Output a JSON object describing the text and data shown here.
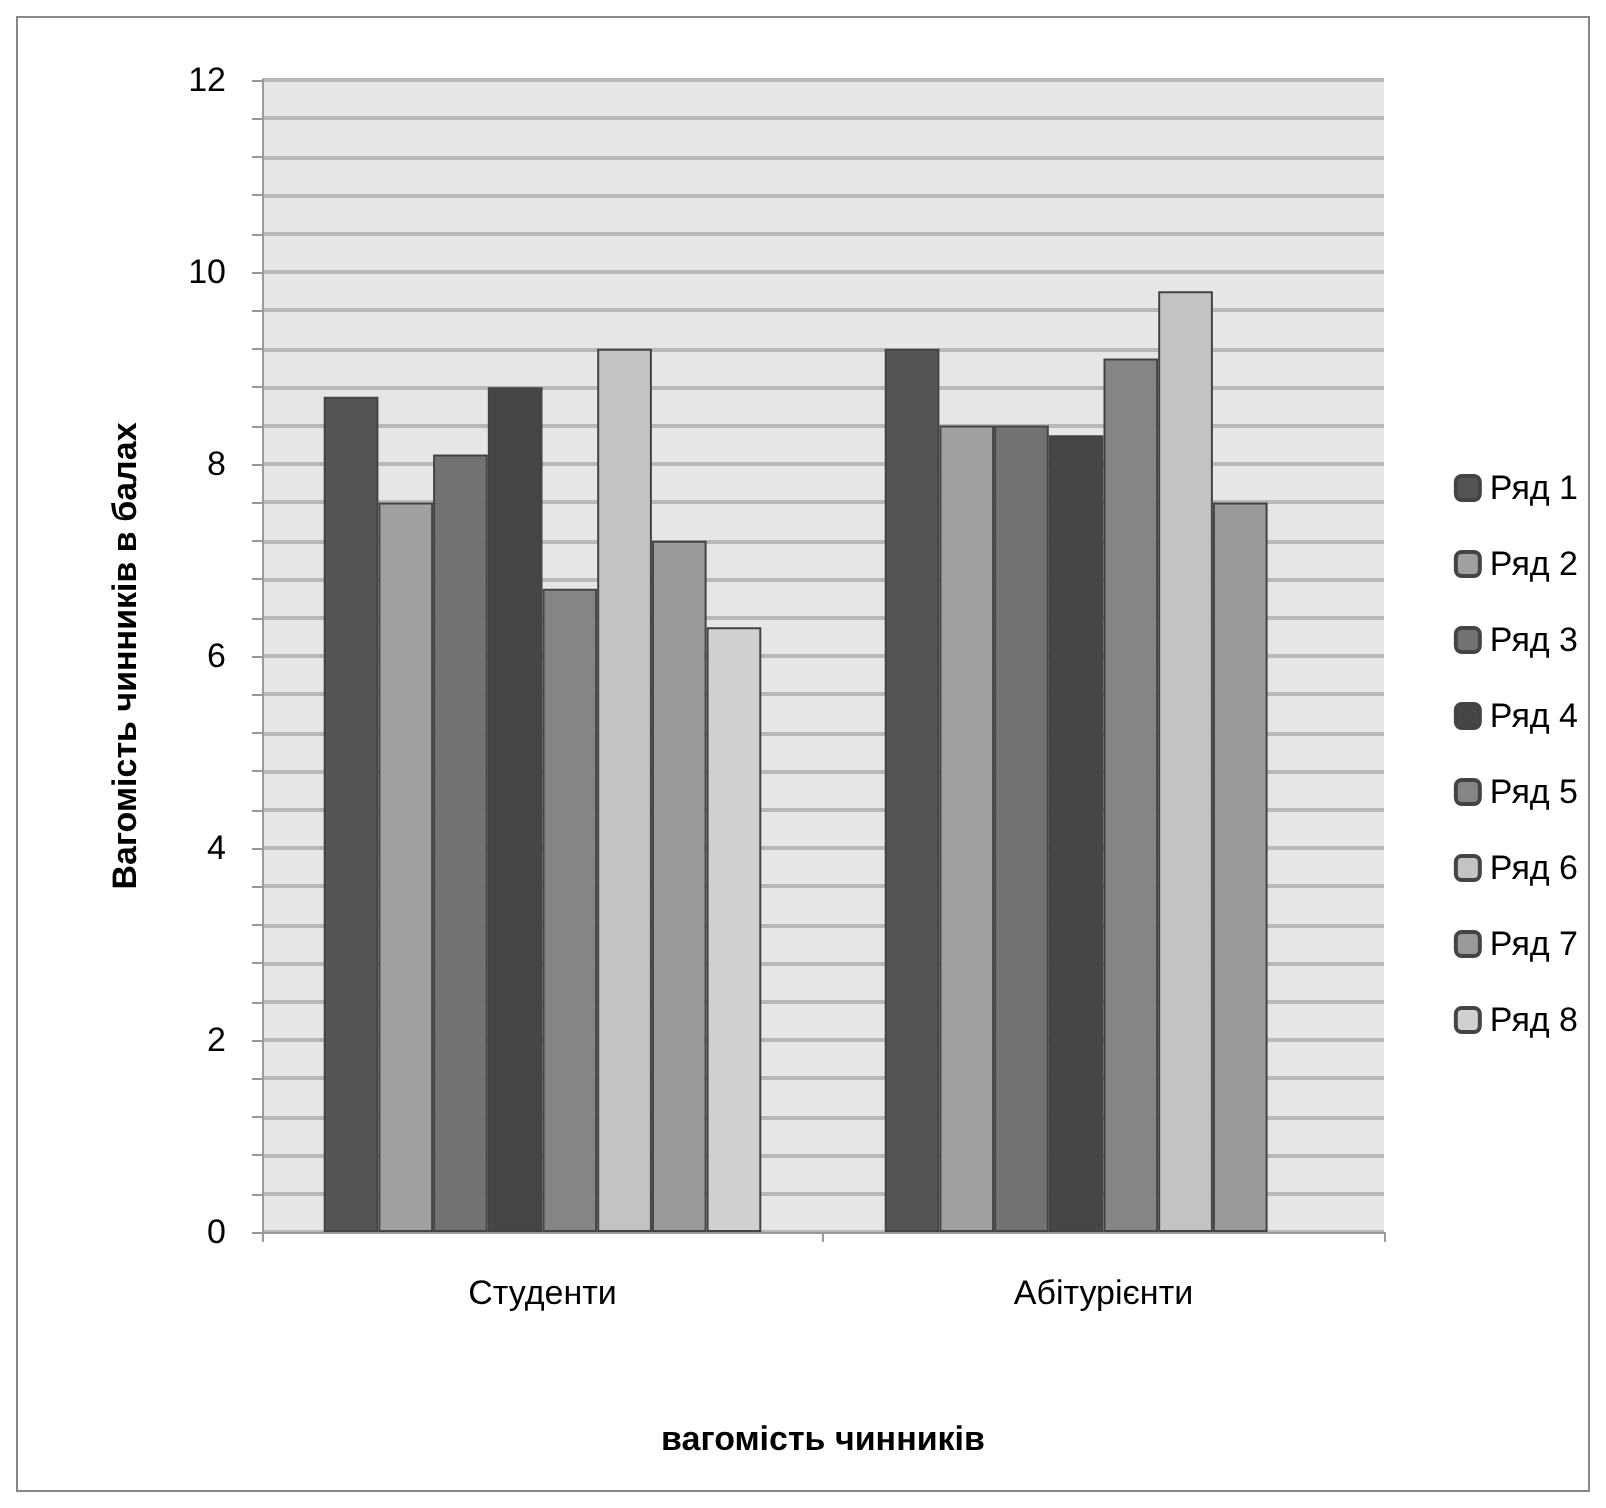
{
  "chart_data": {
    "type": "bar",
    "xlabel": "вагомість чинників",
    "ylabel": "Вагомість чинників в балах",
    "categories": [
      "Студенти",
      "Абітурієнти"
    ],
    "series": [
      {
        "name": "Ряд 1",
        "color": "#555555",
        "values": [
          8.7,
          9.2
        ]
      },
      {
        "name": "Ряд 2",
        "color": "#a0a0a0",
        "values": [
          7.6,
          8.4
        ]
      },
      {
        "name": "Ряд 3",
        "color": "#727272",
        "values": [
          8.1,
          8.4
        ]
      },
      {
        "name": "Ряд 4",
        "color": "#464646",
        "values": [
          8.8,
          8.3
        ]
      },
      {
        "name": "Ряд 5",
        "color": "#858585",
        "values": [
          6.7,
          9.1
        ]
      },
      {
        "name": "Ряд 6",
        "color": "#c3c3c3",
        "values": [
          9.2,
          9.8
        ]
      },
      {
        "name": "Ряд 7",
        "color": "#999999",
        "values": [
          7.2,
          7.6
        ]
      },
      {
        "name": "Ряд 8",
        "color": "#d0d0d0",
        "values": [
          6.3,
          null
        ]
      }
    ],
    "ylim": [
      0,
      12
    ],
    "yticks": [
      0,
      {
        "value": 0.4,
        "label": null
      },
      {
        "value": 0.8,
        "label": null
      },
      {
        "value": 1.2,
        "label": null
      },
      {
        "value": 1.6,
        "label": null
      },
      2,
      {
        "value": 2.4,
        "label": null
      },
      {
        "value": 2.8,
        "label": null
      },
      {
        "value": 3.2,
        "label": null
      },
      {
        "value": 3.6,
        "label": null
      },
      4,
      {
        "value": 4.4,
        "label": null
      },
      {
        "value": 4.8,
        "label": null
      },
      {
        "value": 5.2,
        "label": null
      },
      {
        "value": 5.6,
        "label": null
      },
      6,
      {
        "value": 6.4,
        "label": null
      },
      {
        "value": 6.8,
        "label": null
      },
      {
        "value": 7.2,
        "label": null
      },
      {
        "value": 7.6,
        "label": null
      },
      8,
      {
        "value": 8.4,
        "label": null
      },
      {
        "value": 8.8,
        "label": null
      },
      {
        "value": 9.2,
        "label": null
      },
      {
        "value": 9.6,
        "label": null
      },
      10,
      {
        "value": 10.4,
        "label": null
      },
      {
        "value": 10.8,
        "label": null
      },
      {
        "value": 11.2,
        "label": null
      },
      {
        "value": 11.6,
        "label": null
      },
      12
    ],
    "grid": "y",
    "legend": "right"
  }
}
